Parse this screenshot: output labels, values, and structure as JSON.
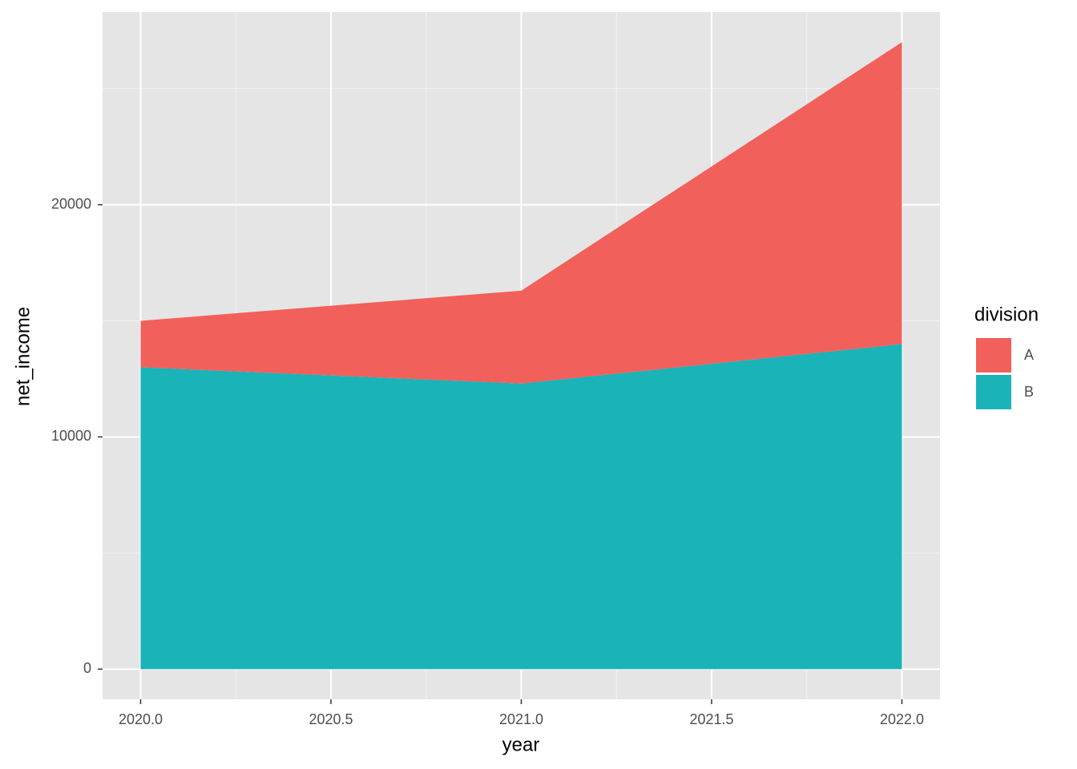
{
  "chart_data": {
    "type": "area",
    "stacked": true,
    "x_label": "year",
    "y_label": "net_income",
    "x": [
      2020,
      2021,
      2022
    ],
    "series": [
      {
        "name": "A",
        "color": "#F2605B",
        "values": [
          2000,
          4000,
          13000
        ]
      },
      {
        "name": "B",
        "color": "#1AB3B8",
        "values": [
          13000,
          12300,
          14000
        ]
      }
    ],
    "legend_title": "division",
    "legend_position": "right",
    "xlim": [
      2019.9,
      2022.1
    ],
    "xticks": [
      {
        "value": 2020,
        "label": "2020.0"
      },
      {
        "value": 2020.5,
        "label": "2020.5"
      },
      {
        "value": 2021,
        "label": "2021.0"
      },
      {
        "value": 2021.5,
        "label": "2021.5"
      },
      {
        "value": 2022,
        "label": "2022.0"
      }
    ],
    "ylim": [
      -1300,
      28300
    ],
    "yticks": [
      0,
      10000,
      20000
    ],
    "grid": true
  }
}
